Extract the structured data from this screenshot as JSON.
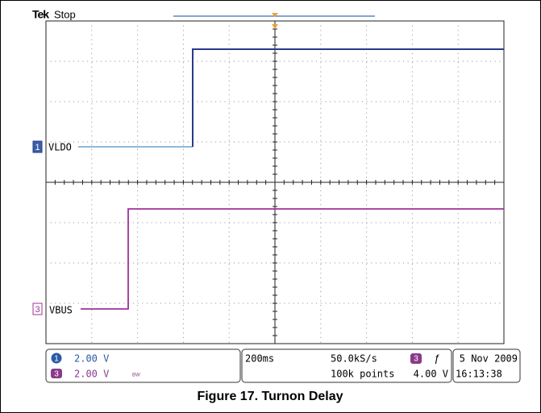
{
  "header": {
    "brand": "Tek",
    "status": "Stop"
  },
  "channels": [
    {
      "number": "1",
      "label": "VLDO"
    },
    {
      "number": "3",
      "label": "VBUS"
    }
  ],
  "status_bar": {
    "ch1": {
      "number": "1",
      "scale": "2.00 V"
    },
    "ch3": {
      "number": "3",
      "scale": "2.00 V",
      "bandwidth": "BW"
    },
    "timebase": "200ms",
    "sample_rate": "50.0kS/s",
    "record_length": "100k points",
    "trigger": {
      "channel": "3",
      "slope": "ƒ",
      "level": "4.00 V"
    },
    "date": "5 Nov 2009",
    "time": "16:13:38"
  },
  "caption": "Figure 17. Turnon Delay"
}
